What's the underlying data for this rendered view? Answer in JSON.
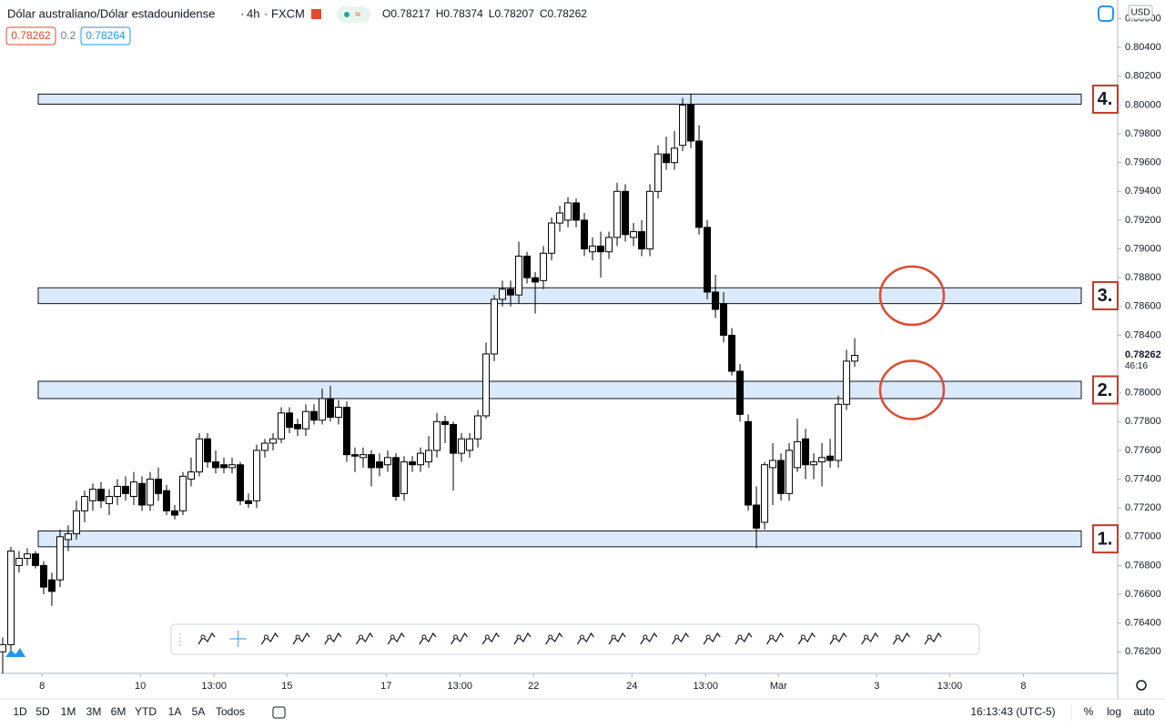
{
  "header": {
    "symbol": "Dólar australiano/Dólar estadounidense",
    "interval": "4h",
    "source": "FXCM",
    "ohlc_legend": [
      {
        "label": "O",
        "value": "0.78217"
      },
      {
        "label": "H",
        "value": "0.78374"
      },
      {
        "label": "L",
        "value": "0.78207"
      },
      {
        "label": "C",
        "value": "0.78262"
      }
    ],
    "bid": "0.78262",
    "spread": "0.2",
    "ask": "0.78264",
    "currency": "USD"
  },
  "chart_data": {
    "type": "candlestick",
    "ohlc": [
      [
        0.762,
        0.763,
        0.7605,
        0.7625
      ],
      [
        0.7625,
        0.7693,
        0.7618,
        0.769
      ],
      [
        0.768,
        0.769,
        0.7675,
        0.7685
      ],
      [
        0.7685,
        0.7692,
        0.768,
        0.7688
      ],
      [
        0.7688,
        0.769,
        0.7678,
        0.768
      ],
      [
        0.768,
        0.7683,
        0.766,
        0.7665
      ],
      [
        0.767,
        0.7675,
        0.7652,
        0.7662
      ],
      [
        0.767,
        0.7705,
        0.7665,
        0.77
      ],
      [
        0.7698,
        0.7708,
        0.769,
        0.7702
      ],
      [
        0.7702,
        0.7725,
        0.7698,
        0.7718
      ],
      [
        0.7718,
        0.7732,
        0.771,
        0.7728
      ],
      [
        0.7725,
        0.7737,
        0.7718,
        0.7733
      ],
      [
        0.7733,
        0.7738,
        0.772,
        0.7725
      ],
      [
        0.7723,
        0.7733,
        0.7715,
        0.7728
      ],
      [
        0.7728,
        0.774,
        0.7722,
        0.7735
      ],
      [
        0.7735,
        0.7742,
        0.7725,
        0.773
      ],
      [
        0.7728,
        0.7745,
        0.7722,
        0.7738
      ],
      [
        0.7737,
        0.7742,
        0.7718,
        0.7722
      ],
      [
        0.7722,
        0.7745,
        0.7718,
        0.774
      ],
      [
        0.774,
        0.7748,
        0.7725,
        0.773
      ],
      [
        0.7732,
        0.7736,
        0.7715,
        0.7718
      ],
      [
        0.7718,
        0.7722,
        0.7712,
        0.7715
      ],
      [
        0.7718,
        0.7745,
        0.7715,
        0.7742
      ],
      [
        0.774,
        0.7755,
        0.7735,
        0.7745
      ],
      [
        0.7745,
        0.7772,
        0.7742,
        0.7768
      ],
      [
        0.7768,
        0.7772,
        0.7748,
        0.7752
      ],
      [
        0.7752,
        0.776,
        0.7744,
        0.7748
      ],
      [
        0.775,
        0.7755,
        0.7744,
        0.7748
      ],
      [
        0.7748,
        0.7755,
        0.7744,
        0.775
      ],
      [
        0.775,
        0.7752,
        0.7722,
        0.7725
      ],
      [
        0.7725,
        0.773,
        0.772,
        0.7723
      ],
      [
        0.7725,
        0.7764,
        0.772,
        0.776
      ],
      [
        0.776,
        0.7768,
        0.7755,
        0.7765
      ],
      [
        0.7765,
        0.7772,
        0.776,
        0.7768
      ],
      [
        0.7768,
        0.779,
        0.7765,
        0.7786
      ],
      [
        0.7786,
        0.779,
        0.7772,
        0.7776
      ],
      [
        0.7778,
        0.7782,
        0.777,
        0.7775
      ],
      [
        0.7775,
        0.7792,
        0.777,
        0.7787
      ],
      [
        0.7787,
        0.7792,
        0.7778,
        0.7781
      ],
      [
        0.7781,
        0.7803,
        0.7778,
        0.7796
      ],
      [
        0.7796,
        0.7805,
        0.778,
        0.7783
      ],
      [
        0.7783,
        0.7795,
        0.7778,
        0.779
      ],
      [
        0.779,
        0.7794,
        0.7752,
        0.7757
      ],
      [
        0.7757,
        0.7762,
        0.7745,
        0.7756
      ],
      [
        0.7755,
        0.7762,
        0.7748,
        0.7757
      ],
      [
        0.7757,
        0.776,
        0.7735,
        0.7748
      ],
      [
        0.7752,
        0.7758,
        0.7742,
        0.7748
      ],
      [
        0.775,
        0.776,
        0.7745,
        0.7755
      ],
      [
        0.7755,
        0.7758,
        0.7725,
        0.7728
      ],
      [
        0.773,
        0.7756,
        0.7725,
        0.7752
      ],
      [
        0.7752,
        0.7756,
        0.7745,
        0.775
      ],
      [
        0.775,
        0.7762,
        0.7745,
        0.7758
      ],
      [
        0.7752,
        0.777,
        0.7748,
        0.776
      ],
      [
        0.776,
        0.7786,
        0.7755,
        0.778
      ],
      [
        0.778,
        0.7784,
        0.7765,
        0.7778
      ],
      [
        0.7778,
        0.778,
        0.7732,
        0.7758
      ],
      [
        0.7758,
        0.7772,
        0.7752,
        0.7768
      ],
      [
        0.776,
        0.7772,
        0.7755,
        0.7768
      ],
      [
        0.7768,
        0.7788,
        0.7762,
        0.7784
      ],
      [
        0.7784,
        0.7835,
        0.7782,
        0.7827
      ],
      [
        0.7827,
        0.7868,
        0.7822,
        0.7865
      ],
      [
        0.7865,
        0.7878,
        0.786,
        0.7872
      ],
      [
        0.7872,
        0.7878,
        0.786,
        0.7868
      ],
      [
        0.7868,
        0.7905,
        0.7862,
        0.7895
      ],
      [
        0.7895,
        0.7898,
        0.7876,
        0.788
      ],
      [
        0.788,
        0.7884,
        0.7855,
        0.7877
      ],
      [
        0.7878,
        0.7902,
        0.7872,
        0.7897
      ],
      [
        0.7897,
        0.7922,
        0.7892,
        0.7918
      ],
      [
        0.7918,
        0.793,
        0.7912,
        0.7925
      ],
      [
        0.792,
        0.7936,
        0.7915,
        0.7932
      ],
      [
        0.7932,
        0.7935,
        0.7915,
        0.792
      ],
      [
        0.792,
        0.7925,
        0.7895,
        0.79
      ],
      [
        0.7898,
        0.7908,
        0.7892,
        0.7902
      ],
      [
        0.7902,
        0.7912,
        0.788,
        0.7898
      ],
      [
        0.7898,
        0.7912,
        0.7893,
        0.7908
      ],
      [
        0.7908,
        0.7946,
        0.7902,
        0.794
      ],
      [
        0.794,
        0.7945,
        0.7905,
        0.791
      ],
      [
        0.7908,
        0.7918,
        0.7902,
        0.7912
      ],
      [
        0.7912,
        0.792,
        0.7895,
        0.79
      ],
      [
        0.79,
        0.7945,
        0.7895,
        0.794
      ],
      [
        0.794,
        0.7972,
        0.7935,
        0.7966
      ],
      [
        0.7966,
        0.7978,
        0.7955,
        0.796
      ],
      [
        0.796,
        0.7982,
        0.7955,
        0.797
      ],
      [
        0.7972,
        0.8005,
        0.7968,
        0.8
      ],
      [
        0.8,
        0.8008,
        0.797,
        0.7975
      ],
      [
        0.7975,
        0.7986,
        0.791,
        0.7915
      ],
      [
        0.7915,
        0.792,
        0.7865,
        0.787
      ],
      [
        0.787,
        0.7882,
        0.7852,
        0.7858
      ],
      [
        0.7862,
        0.787,
        0.7835,
        0.784
      ],
      [
        0.784,
        0.7845,
        0.7812,
        0.7815
      ],
      [
        0.7815,
        0.782,
        0.778,
        0.7785
      ],
      [
        0.778,
        0.7785,
        0.7718,
        0.7722
      ],
      [
        0.7722,
        0.7735,
        0.7692,
        0.7706
      ],
      [
        0.771,
        0.7752,
        0.7705,
        0.775
      ],
      [
        0.7748,
        0.7765,
        0.7722,
        0.7753
      ],
      [
        0.7753,
        0.7758,
        0.7725,
        0.773
      ],
      [
        0.773,
        0.7765,
        0.7725,
        0.776
      ],
      [
        0.7748,
        0.7782,
        0.7745,
        0.7766
      ],
      [
        0.7768,
        0.7775,
        0.774,
        0.775
      ],
      [
        0.775,
        0.7758,
        0.774,
        0.7752
      ],
      [
        0.7752,
        0.7765,
        0.7735,
        0.7755
      ],
      [
        0.7756,
        0.7768,
        0.7748,
        0.7753
      ],
      [
        0.7753,
        0.7798,
        0.7748,
        0.7792
      ],
      [
        0.7792,
        0.783,
        0.7788,
        0.7822
      ],
      [
        0.7822,
        0.7838,
        0.7818,
        0.7826
      ]
    ],
    "up_color": "#ffffff",
    "down_color": "#000000",
    "xlim": [
      -0.33,
      136.1
    ],
    "xticks": [
      {
        "value": 4.8,
        "label": "8"
      },
      {
        "value": 16.8,
        "label": "10"
      },
      {
        "value": 25.8,
        "label": "13:00"
      },
      {
        "value": 34.7,
        "label": "15"
      },
      {
        "value": 46.8,
        "label": "17"
      },
      {
        "value": 55.8,
        "label": "13:00"
      },
      {
        "value": 64.8,
        "label": "22"
      },
      {
        "value": 76.8,
        "label": "24"
      },
      {
        "value": 85.8,
        "label": "13:00"
      },
      {
        "value": 94.7,
        "label": "Mar"
      },
      {
        "value": 106.7,
        "label": "3"
      },
      {
        "value": 115.6,
        "label": "13:00"
      },
      {
        "value": 124.6,
        "label": "8"
      }
    ],
    "ylim": [
      0.7605,
      0.8073
    ],
    "yticks": [
      {
        "value": 0.806,
        "label": "0.80600"
      },
      {
        "value": 0.804,
        "label": "0.80400"
      },
      {
        "value": 0.802,
        "label": "0.80200"
      },
      {
        "value": 0.8,
        "label": "0.80000"
      },
      {
        "value": 0.798,
        "label": "0.79800"
      },
      {
        "value": 0.796,
        "label": "0.79600"
      },
      {
        "value": 0.794,
        "label": "0.79400"
      },
      {
        "value": 0.792,
        "label": "0.79200"
      },
      {
        "value": 0.79,
        "label": "0.79000"
      },
      {
        "value": 0.788,
        "label": "0.78800"
      },
      {
        "value": 0.786,
        "label": "0.78600"
      },
      {
        "value": 0.784,
        "label": "0.78400"
      },
      {
        "value": 0.782,
        "label": "0.78200"
      },
      {
        "value": 0.78,
        "label": "0.78000"
      },
      {
        "value": 0.778,
        "label": "0.77800"
      },
      {
        "value": 0.776,
        "label": "0.77600"
      },
      {
        "value": 0.774,
        "label": "0.77400"
      },
      {
        "value": 0.772,
        "label": "0.77200"
      },
      {
        "value": 0.77,
        "label": "0.77000"
      },
      {
        "value": 0.768,
        "label": "0.76800"
      },
      {
        "value": 0.766,
        "label": "0.76600"
      },
      {
        "value": 0.764,
        "label": "0.76400"
      },
      {
        "value": 0.762,
        "label": "0.76200"
      }
    ],
    "last_price": 0.78262,
    "countdown": "46:16",
    "zones": [
      {
        "label": "1.",
        "range": [
          0.7693,
          0.7704
        ]
      },
      {
        "label": "2.",
        "range": [
          0.7796,
          0.7808
        ]
      },
      {
        "label": "3.",
        "range": [
          0.7862,
          0.7873
        ]
      },
      {
        "label": "4.",
        "range": [
          0.80006,
          0.80076
        ]
      }
    ],
    "zone_color": "#dbeafa",
    "circle_color": "#e0492f"
  },
  "footer": {
    "ranges": [
      "1D",
      "5D",
      "1M",
      "3M",
      "6M",
      "YTD",
      "1A",
      "5A",
      "Todos"
    ],
    "clock": "16:13:43 (UTC-5)",
    "options": [
      "%",
      "log",
      "auto"
    ]
  }
}
